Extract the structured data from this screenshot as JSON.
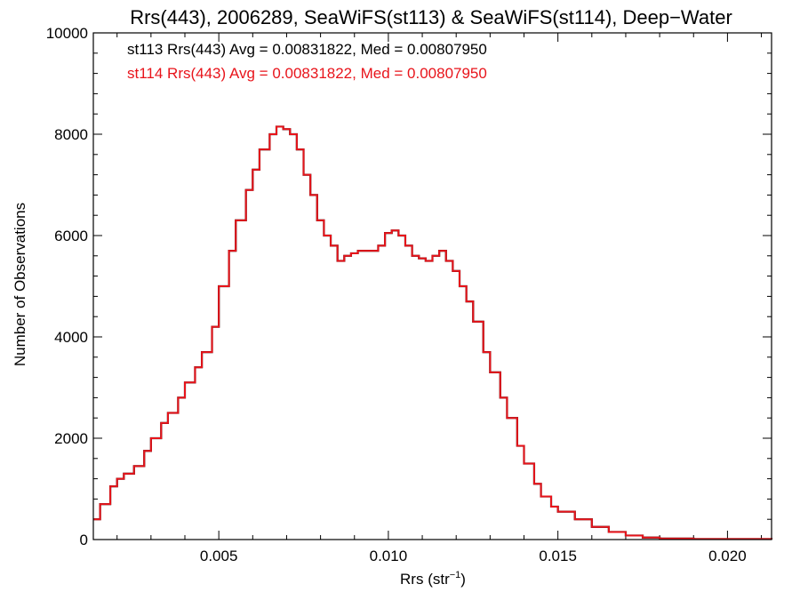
{
  "chart_data": {
    "type": "line",
    "title": "Rrs(443), 2006289, SeaWiFS(st113) & SeaWiFS(st114), Deep−Water",
    "xlabel": "Rrs (str",
    "xlabel_sup": "−1",
    "xlabel_end": ")",
    "ylabel": "Number of Observations",
    "xlim": [
      0.0013,
      0.0213
    ],
    "ylim": [
      0,
      10000
    ],
    "x_ticks": [
      0.005,
      0.01,
      0.015,
      0.02
    ],
    "x_tick_labels": [
      "0.005",
      "0.010",
      "0.015",
      "0.020"
    ],
    "y_ticks": [
      0,
      2000,
      4000,
      6000,
      8000,
      10000
    ],
    "y_tick_labels": [
      "0",
      "2000",
      "4000",
      "6000",
      "8000",
      "10000"
    ],
    "annotations": [
      {
        "text": "st113 Rrs(443) Avg = 0.00831822, Med = 0.00807950",
        "color": "#000000"
      },
      {
        "text": "st114 Rrs(443) Avg = 0.00831822, Med = 0.00807950",
        "color": "#e8141b"
      }
    ],
    "series": [
      {
        "color": "#000000",
        "x": [
          0.0013,
          0.0015,
          0.0018,
          0.002,
          0.0022,
          0.0025,
          0.0028,
          0.003,
          0.0033,
          0.0035,
          0.0038,
          0.004,
          0.0043,
          0.0045,
          0.0048,
          0.005,
          0.0053,
          0.0055,
          0.0058,
          0.006,
          0.0062,
          0.0065,
          0.0067,
          0.0069,
          0.0071,
          0.0073,
          0.0075,
          0.0077,
          0.0079,
          0.0081,
          0.0083,
          0.0085,
          0.0087,
          0.0089,
          0.0091,
          0.0093,
          0.0095,
          0.0097,
          0.0099,
          0.0101,
          0.0103,
          0.0105,
          0.0107,
          0.0109,
          0.0111,
          0.0113,
          0.0115,
          0.0117,
          0.0119,
          0.0121,
          0.0123,
          0.0125,
          0.0128,
          0.013,
          0.0133,
          0.0135,
          0.0138,
          0.014,
          0.0143,
          0.0145,
          0.0148,
          0.015,
          0.0155,
          0.016,
          0.0165,
          0.017,
          0.0175,
          0.018,
          0.019,
          0.02,
          0.0213
        ],
        "y": [
          400,
          700,
          1050,
          1200,
          1300,
          1450,
          1750,
          2000,
          2300,
          2500,
          2800,
          3100,
          3400,
          3700,
          4200,
          5000,
          5700,
          6300,
          6900,
          7300,
          7700,
          8000,
          8150,
          8100,
          8000,
          7700,
          7200,
          6800,
          6300,
          6000,
          5800,
          5500,
          5600,
          5650,
          5700,
          5700,
          5700,
          5800,
          6050,
          6100,
          6000,
          5800,
          5600,
          5550,
          5500,
          5600,
          5700,
          5500,
          5300,
          5000,
          4700,
          4300,
          3700,
          3300,
          2800,
          2400,
          1850,
          1500,
          1100,
          850,
          650,
          550,
          400,
          250,
          150,
          80,
          40,
          20,
          10,
          10,
          5
        ]
      },
      {
        "color": "#e8141b",
        "x": [
          0.0013,
          0.0015,
          0.0018,
          0.002,
          0.0022,
          0.0025,
          0.0028,
          0.003,
          0.0033,
          0.0035,
          0.0038,
          0.004,
          0.0043,
          0.0045,
          0.0048,
          0.005,
          0.0053,
          0.0055,
          0.0058,
          0.006,
          0.0062,
          0.0065,
          0.0067,
          0.0069,
          0.0071,
          0.0073,
          0.0075,
          0.0077,
          0.0079,
          0.0081,
          0.0083,
          0.0085,
          0.0087,
          0.0089,
          0.0091,
          0.0093,
          0.0095,
          0.0097,
          0.0099,
          0.0101,
          0.0103,
          0.0105,
          0.0107,
          0.0109,
          0.0111,
          0.0113,
          0.0115,
          0.0117,
          0.0119,
          0.0121,
          0.0123,
          0.0125,
          0.0128,
          0.013,
          0.0133,
          0.0135,
          0.0138,
          0.014,
          0.0143,
          0.0145,
          0.0148,
          0.015,
          0.0155,
          0.016,
          0.0165,
          0.017,
          0.0175,
          0.018,
          0.019,
          0.02,
          0.0213
        ],
        "y": [
          400,
          700,
          1050,
          1200,
          1300,
          1450,
          1750,
          2000,
          2300,
          2500,
          2800,
          3100,
          3400,
          3700,
          4200,
          5000,
          5700,
          6300,
          6900,
          7300,
          7700,
          8000,
          8150,
          8100,
          8000,
          7700,
          7200,
          6800,
          6300,
          6000,
          5800,
          5500,
          5600,
          5650,
          5700,
          5700,
          5700,
          5800,
          6050,
          6100,
          6000,
          5800,
          5600,
          5550,
          5500,
          5600,
          5700,
          5500,
          5300,
          5000,
          4700,
          4300,
          3700,
          3300,
          2800,
          2400,
          1850,
          1500,
          1100,
          850,
          650,
          550,
          400,
          250,
          150,
          80,
          40,
          20,
          10,
          10,
          5
        ]
      }
    ]
  }
}
